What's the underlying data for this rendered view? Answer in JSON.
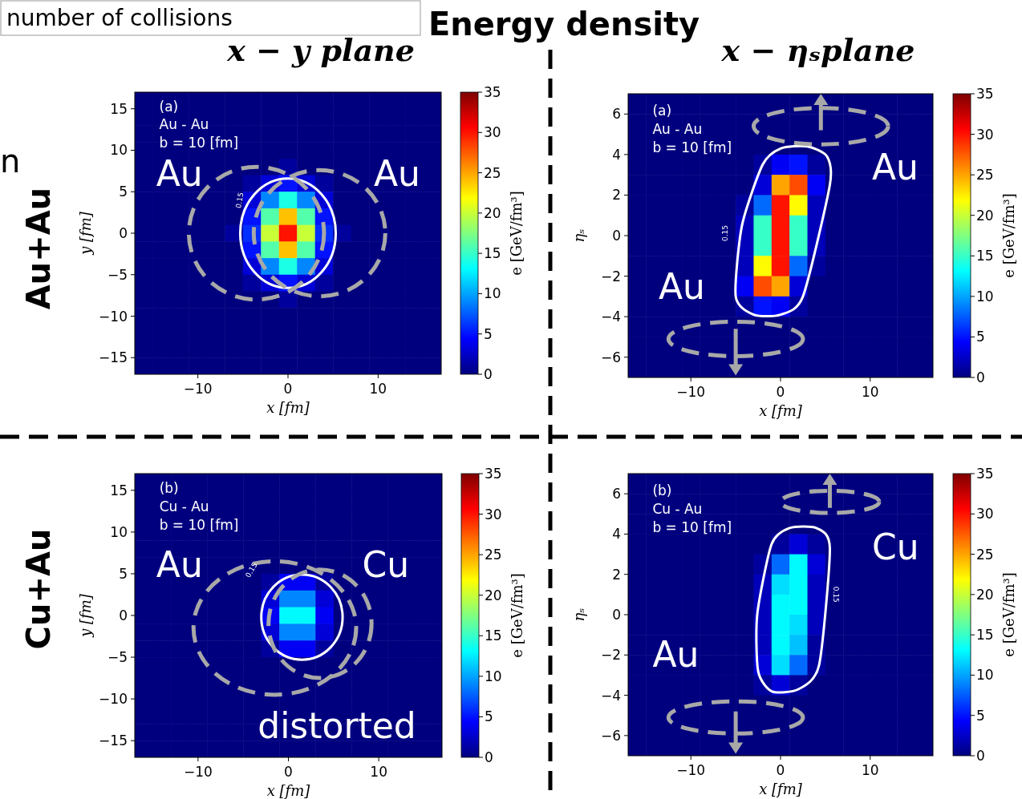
{
  "chart_data": [
    {
      "type": "other",
      "title": "Energy density",
      "annotations": [
        "x − y plane",
        "x − ηₛplane",
        "Au+Au",
        "Cu+Au",
        "number of collisions",
        "n"
      ]
    },
    {
      "type": "heatmap",
      "xlabel": "x [fm]",
      "ylabel": "y [fm]",
      "clabel": "e [GeV/fm³]",
      "xlim": [
        -17,
        17
      ],
      "ylim": [
        -17,
        17
      ],
      "xticks": [
        -10,
        0,
        10
      ],
      "yticks": [
        -15,
        -10,
        -5,
        0,
        5,
        10,
        15
      ],
      "clim": [
        0,
        35
      ],
      "cticks": [
        0,
        5,
        10,
        15,
        20,
        25,
        30,
        35
      ],
      "annotations": [
        "(a)",
        "Au - Au",
        "b = 10 [fm]",
        "Au",
        "Au",
        "0.15"
      ],
      "x": [
        -16,
        -14,
        -12,
        -10,
        -8,
        -6,
        -4,
        -2,
        0,
        2,
        4,
        6,
        8,
        10,
        12,
        14,
        16
      ],
      "y": [
        16,
        14,
        12,
        10,
        8,
        6,
        4,
        2,
        0,
        -2,
        -4,
        -6,
        -8,
        -10,
        -12,
        -14,
        -16
      ],
      "cells": [
        [
          0,
          0,
          0,
          0,
          0,
          0,
          0,
          0,
          0,
          0,
          0,
          0,
          0,
          0,
          0,
          0,
          0
        ],
        [
          0,
          0,
          0,
          0,
          0,
          0,
          0,
          0,
          0,
          0,
          0,
          0,
          0,
          0,
          0,
          0,
          0
        ],
        [
          0,
          0,
          0,
          0,
          0,
          0,
          0,
          0,
          0,
          0,
          0,
          0,
          0,
          0,
          0,
          0,
          0
        ],
        [
          0,
          0,
          0,
          0,
          0,
          0,
          0,
          0,
          0,
          0,
          0,
          0,
          0,
          0,
          0,
          0,
          0
        ],
        [
          0,
          0,
          0,
          0,
          0,
          0,
          0,
          0,
          1,
          0,
          0,
          0,
          0,
          0,
          0,
          0,
          0
        ],
        [
          0,
          0,
          0,
          0,
          0,
          0,
          1,
          3,
          5,
          3,
          1,
          0,
          0,
          0,
          0,
          0,
          0
        ],
        [
          0,
          0,
          0,
          0,
          0,
          0,
          3,
          9,
          14,
          9,
          3,
          0,
          0,
          0,
          0,
          0,
          0
        ],
        [
          0,
          0,
          0,
          0,
          0,
          0,
          5,
          16,
          24,
          16,
          5,
          0,
          0,
          0,
          0,
          0,
          0
        ],
        [
          0,
          0,
          0,
          0,
          0,
          1,
          6,
          20,
          30,
          20,
          6,
          1,
          0,
          0,
          0,
          0,
          0
        ],
        [
          0,
          0,
          0,
          0,
          0,
          0,
          5,
          16,
          24,
          16,
          5,
          0,
          0,
          0,
          0,
          0,
          0
        ],
        [
          0,
          0,
          0,
          0,
          0,
          0,
          3,
          9,
          14,
          9,
          3,
          0,
          0,
          0,
          0,
          0,
          0
        ],
        [
          0,
          0,
          0,
          0,
          0,
          0,
          1,
          3,
          5,
          3,
          1,
          0,
          0,
          0,
          0,
          0,
          0
        ],
        [
          0,
          0,
          0,
          0,
          0,
          0,
          0,
          0,
          1,
          0,
          0,
          0,
          0,
          0,
          0,
          0,
          0
        ],
        [
          0,
          0,
          0,
          0,
          0,
          0,
          0,
          0,
          0,
          0,
          0,
          0,
          0,
          0,
          0,
          0,
          0
        ],
        [
          0,
          0,
          0,
          0,
          0,
          0,
          0,
          0,
          0,
          0,
          0,
          0,
          0,
          0,
          0,
          0,
          0
        ],
        [
          0,
          0,
          0,
          0,
          0,
          0,
          0,
          0,
          0,
          0,
          0,
          0,
          0,
          0,
          0,
          0,
          0
        ],
        [
          0,
          0,
          0,
          0,
          0,
          0,
          0,
          0,
          0,
          0,
          0,
          0,
          0,
          0,
          0,
          0,
          0
        ]
      ]
    },
    {
      "type": "heatmap",
      "xlabel": "x [fm]",
      "ylabel": "ηₛ",
      "clabel": "e [GeV/fm³]",
      "xlim": [
        -17,
        17
      ],
      "ylim": [
        -7,
        7
      ],
      "xticks": [
        -10,
        0,
        10
      ],
      "yticks": [
        -6,
        -4,
        -2,
        0,
        2,
        4,
        6
      ],
      "clim": [
        0,
        35
      ],
      "cticks": [
        0,
        5,
        10,
        15,
        20,
        25,
        30,
        35
      ],
      "annotations": [
        "(a)",
        "Au - Au",
        "b = 10 [fm]",
        "Au",
        "Au",
        "0.15"
      ],
      "x": [
        -16,
        -14,
        -12,
        -10,
        -8,
        -6,
        -4,
        -2,
        0,
        2,
        4,
        6,
        8,
        10,
        12,
        14,
        16
      ],
      "y": [
        6.5,
        5.5,
        4.5,
        3.5,
        2.5,
        1.5,
        0.5,
        -0.5,
        -1.5,
        -2.5,
        -3.5,
        -4.5,
        -5.5,
        -6.5
      ],
      "cells": [
        [
          0,
          0,
          0,
          0,
          0,
          0,
          0,
          0,
          0,
          0,
          0,
          0,
          0,
          0,
          0,
          0,
          0
        ],
        [
          0,
          0,
          0,
          0,
          0,
          0,
          0,
          0,
          0,
          0,
          0,
          0,
          0,
          0,
          0,
          0,
          0
        ],
        [
          0,
          0,
          0,
          0,
          0,
          0,
          0,
          0,
          0,
          0,
          0,
          0,
          0,
          0,
          0,
          0,
          0
        ],
        [
          0,
          0,
          0,
          0,
          0,
          0,
          0,
          1,
          4,
          5,
          1,
          0,
          0,
          0,
          0,
          0,
          0
        ],
        [
          0,
          0,
          0,
          0,
          0,
          0,
          0,
          3,
          25,
          28,
          4,
          0,
          0,
          0,
          0,
          0,
          0
        ],
        [
          0,
          0,
          0,
          0,
          0,
          0,
          1,
          8,
          30,
          22,
          2,
          0,
          0,
          0,
          0,
          0,
          0
        ],
        [
          0,
          0,
          0,
          0,
          0,
          0,
          2,
          15,
          30,
          15,
          2,
          0,
          0,
          0,
          0,
          0,
          0
        ],
        [
          0,
          0,
          0,
          0,
          0,
          0,
          2,
          15,
          30,
          15,
          2,
          0,
          0,
          0,
          0,
          0,
          0
        ],
        [
          0,
          0,
          0,
          0,
          0,
          0,
          2,
          22,
          30,
          8,
          1,
          0,
          0,
          0,
          0,
          0,
          0
        ],
        [
          0,
          0,
          0,
          0,
          0,
          0,
          4,
          28,
          25,
          3,
          0,
          0,
          0,
          0,
          0,
          0,
          0
        ],
        [
          0,
          0,
          0,
          0,
          0,
          0,
          1,
          5,
          4,
          1,
          0,
          0,
          0,
          0,
          0,
          0,
          0
        ],
        [
          0,
          0,
          0,
          0,
          0,
          0,
          0,
          0,
          0,
          0,
          0,
          0,
          0,
          0,
          0,
          0,
          0
        ],
        [
          0,
          0,
          0,
          0,
          0,
          0,
          0,
          0,
          0,
          0,
          0,
          0,
          0,
          0,
          0,
          0,
          0
        ],
        [
          0,
          0,
          0,
          0,
          0,
          0,
          0,
          0,
          0,
          0,
          0,
          0,
          0,
          0,
          0,
          0,
          0
        ]
      ]
    },
    {
      "type": "heatmap",
      "xlabel": "x [fm]",
      "ylabel": "y [fm]",
      "clabel": "e [GeV/fm³]",
      "xlim": [
        -17,
        17
      ],
      "ylim": [
        -17,
        17
      ],
      "xticks": [
        -10,
        0,
        10
      ],
      "yticks": [
        -15,
        -10,
        -5,
        0,
        5,
        10,
        15
      ],
      "clim": [
        0,
        35
      ],
      "cticks": [
        0,
        5,
        10,
        15,
        20,
        25,
        30,
        35
      ],
      "annotations": [
        "(b)",
        "Cu - Au",
        "b = 10 [fm]",
        "Au",
        "Cu",
        "0.15",
        "distorted"
      ],
      "x": [
        -16,
        -14,
        -12,
        -10,
        -8,
        -6,
        -4,
        -2,
        0,
        2,
        4,
        6,
        8,
        10,
        12,
        14,
        16
      ],
      "y": [
        16,
        14,
        12,
        10,
        8,
        6,
        4,
        2,
        0,
        -2,
        -4,
        -6,
        -8,
        -10,
        -12,
        -14,
        -16
      ],
      "cells": [
        [
          0,
          0,
          0,
          0,
          0,
          0,
          0,
          0,
          0,
          0,
          0,
          0,
          0,
          0,
          0,
          0,
          0
        ],
        [
          0,
          0,
          0,
          0,
          0,
          0,
          0,
          0,
          0,
          0,
          0,
          0,
          0,
          0,
          0,
          0,
          0
        ],
        [
          0,
          0,
          0,
          0,
          0,
          0,
          0,
          0,
          0,
          0,
          0,
          0,
          0,
          0,
          0,
          0,
          0
        ],
        [
          0,
          0,
          0,
          0,
          0,
          0,
          0,
          0,
          0,
          0,
          0,
          0,
          0,
          0,
          0,
          0,
          0
        ],
        [
          0,
          0,
          0,
          0,
          0,
          0,
          0,
          0,
          0,
          0,
          0,
          0,
          0,
          0,
          0,
          0,
          0
        ],
        [
          0,
          0,
          0,
          0,
          0,
          0,
          0,
          0,
          0,
          0,
          0,
          0,
          0,
          0,
          0,
          0,
          0
        ],
        [
          0,
          0,
          0,
          0,
          0,
          0,
          0,
          1,
          4,
          4,
          1,
          0,
          0,
          0,
          0,
          0,
          0
        ],
        [
          0,
          0,
          0,
          0,
          0,
          0,
          0,
          3,
          9,
          9,
          3,
          0,
          0,
          0,
          0,
          0,
          0
        ],
        [
          0,
          0,
          0,
          0,
          0,
          0,
          0,
          4,
          13,
          13,
          4,
          0,
          0,
          0,
          0,
          0,
          0
        ],
        [
          0,
          0,
          0,
          0,
          0,
          0,
          0,
          3,
          9,
          9,
          3,
          0,
          0,
          0,
          0,
          0,
          0
        ],
        [
          0,
          0,
          0,
          0,
          0,
          0,
          0,
          1,
          4,
          4,
          1,
          0,
          0,
          0,
          0,
          0,
          0
        ],
        [
          0,
          0,
          0,
          0,
          0,
          0,
          0,
          0,
          0,
          0,
          0,
          0,
          0,
          0,
          0,
          0,
          0
        ],
        [
          0,
          0,
          0,
          0,
          0,
          0,
          0,
          0,
          0,
          0,
          0,
          0,
          0,
          0,
          0,
          0,
          0
        ],
        [
          0,
          0,
          0,
          0,
          0,
          0,
          0,
          0,
          0,
          0,
          0,
          0,
          0,
          0,
          0,
          0,
          0
        ],
        [
          0,
          0,
          0,
          0,
          0,
          0,
          0,
          0,
          0,
          0,
          0,
          0,
          0,
          0,
          0,
          0,
          0
        ],
        [
          0,
          0,
          0,
          0,
          0,
          0,
          0,
          0,
          0,
          0,
          0,
          0,
          0,
          0,
          0,
          0,
          0
        ],
        [
          0,
          0,
          0,
          0,
          0,
          0,
          0,
          0,
          0,
          0,
          0,
          0,
          0,
          0,
          0,
          0,
          0
        ]
      ]
    },
    {
      "type": "heatmap",
      "xlabel": "x [fm]",
      "ylabel": "ηₛ",
      "clabel": "e [GeV/fm³]",
      "xlim": [
        -17,
        17
      ],
      "ylim": [
        -7,
        7
      ],
      "xticks": [
        -10,
        0,
        10
      ],
      "yticks": [
        -6,
        -4,
        -2,
        0,
        2,
        4,
        6
      ],
      "clim": [
        0,
        35
      ],
      "cticks": [
        0,
        5,
        10,
        15,
        20,
        25,
        30,
        35
      ],
      "annotations": [
        "(b)",
        "Cu - Au",
        "b = 10 [fm]",
        "Cu",
        "Au",
        "0.15"
      ],
      "x": [
        -16,
        -14,
        -12,
        -10,
        -8,
        -6,
        -4,
        -2,
        0,
        2,
        4,
        6,
        8,
        10,
        12,
        14,
        16
      ],
      "y": [
        6.5,
        5.5,
        4.5,
        3.5,
        2.5,
        1.5,
        0.5,
        -0.5,
        -1.5,
        -2.5,
        -3.5,
        -4.5,
        -5.5,
        -6.5
      ],
      "cells": [
        [
          0,
          0,
          0,
          0,
          0,
          0,
          0,
          0,
          0,
          0,
          0,
          0,
          0,
          0,
          0,
          0,
          0
        ],
        [
          0,
          0,
          0,
          0,
          0,
          0,
          0,
          0,
          0,
          0,
          0,
          0,
          0,
          0,
          0,
          0,
          0
        ],
        [
          0,
          0,
          0,
          0,
          0,
          0,
          0,
          0,
          0,
          0,
          0,
          0,
          0,
          0,
          0,
          0,
          0
        ],
        [
          0,
          0,
          0,
          0,
          0,
          0,
          0,
          0,
          1,
          3,
          1,
          0,
          0,
          0,
          0,
          0,
          0
        ],
        [
          0,
          0,
          0,
          0,
          0,
          0,
          0,
          1,
          8,
          13,
          3,
          0,
          0,
          0,
          0,
          0,
          0
        ],
        [
          0,
          0,
          0,
          0,
          0,
          0,
          0,
          2,
          12,
          13,
          2,
          0,
          0,
          0,
          0,
          0,
          0
        ],
        [
          0,
          0,
          0,
          0,
          0,
          0,
          0,
          2,
          13,
          13,
          2,
          0,
          0,
          0,
          0,
          0,
          0
        ],
        [
          0,
          0,
          0,
          0,
          0,
          0,
          0,
          2,
          13,
          12,
          2,
          0,
          0,
          0,
          0,
          0,
          0
        ],
        [
          0,
          0,
          0,
          0,
          0,
          0,
          0,
          2,
          13,
          11,
          1,
          0,
          0,
          0,
          0,
          0,
          0
        ],
        [
          0,
          0,
          0,
          0,
          0,
          0,
          0,
          3,
          12,
          8,
          1,
          0,
          0,
          0,
          0,
          0,
          0
        ],
        [
          0,
          0,
          0,
          0,
          0,
          0,
          0,
          1,
          3,
          1,
          0,
          0,
          0,
          0,
          0,
          0,
          0
        ],
        [
          0,
          0,
          0,
          0,
          0,
          0,
          0,
          0,
          0,
          0,
          0,
          0,
          0,
          0,
          0,
          0,
          0
        ],
        [
          0,
          0,
          0,
          0,
          0,
          0,
          0,
          0,
          0,
          0,
          0,
          0,
          0,
          0,
          0,
          0,
          0
        ],
        [
          0,
          0,
          0,
          0,
          0,
          0,
          0,
          0,
          0,
          0,
          0,
          0,
          0,
          0,
          0,
          0,
          0
        ]
      ]
    }
  ]
}
